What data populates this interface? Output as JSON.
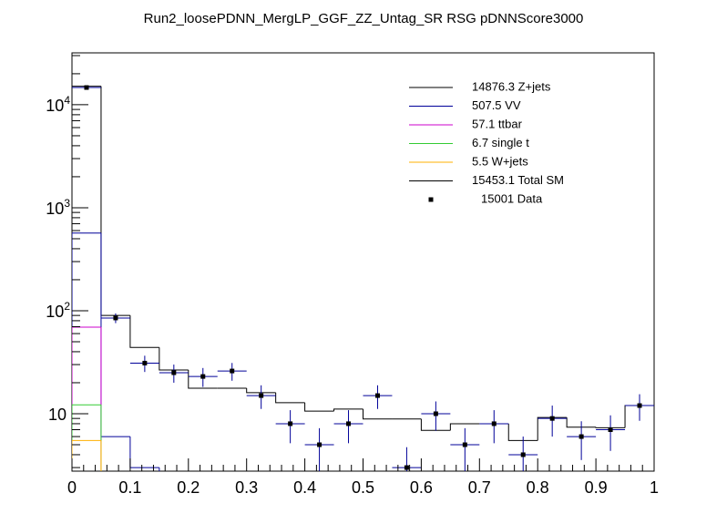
{
  "chart_data": {
    "type": "stacked-histogram",
    "title": "Run2_loosePDNN_MergLP_GGF_ZZ_Untag_SR RSG  pDNNScore3000",
    "bins": [
      0,
      0.05,
      0.1,
      0.15,
      0.2,
      0.25,
      0.3,
      0.35,
      0.4,
      0.45,
      0.5,
      0.55,
      0.6,
      0.65,
      0.7,
      0.75,
      0.8,
      0.85,
      0.9,
      0.95,
      1
    ],
    "log_y": true,
    "xlim": [
      0,
      1
    ],
    "ylim": [
      2.77,
      31900
    ],
    "xticks": [
      0,
      0.1,
      0.2,
      0.3,
      0.4,
      0.5,
      0.6,
      0.7,
      0.8,
      0.9,
      1
    ],
    "yticks": [
      10,
      {
        "value": 100,
        "label": "10^2"
      },
      {
        "value": 1000,
        "label": "10^3"
      },
      {
        "value": 10000,
        "label": "10^4"
      }
    ],
    "series": [
      {
        "name": "5.5 W+jets",
        "color": "#ffb000",
        "values": [
          5.5,
          0,
          0,
          0,
          0,
          0,
          0,
          0,
          0,
          0,
          0,
          0,
          0,
          0,
          0,
          0,
          0,
          0,
          0,
          0
        ]
      },
      {
        "name": "6.7 single t",
        "color": "#33cc33",
        "values": [
          6.7,
          0,
          0,
          0,
          0,
          0,
          0,
          0,
          0,
          0,
          0,
          0,
          0,
          0,
          0,
          0,
          0,
          0,
          0,
          0
        ]
      },
      {
        "name": "57.1 ttbar",
        "color": "#cc00cc",
        "values": [
          57.1,
          0,
          0,
          0,
          0,
          0,
          0,
          0,
          0,
          0,
          0,
          0,
          0,
          0,
          0,
          0,
          0,
          0,
          0,
          0
        ]
      },
      {
        "name": "507.5 VV",
        "color": "#000099",
        "values": [
          498.5,
          6,
          3,
          0,
          0,
          0,
          0,
          0,
          0,
          0,
          0,
          0,
          0,
          0,
          0,
          0,
          0,
          0,
          0,
          0
        ]
      },
      {
        "name": "14876.3 Z+jets",
        "color": "#000000",
        "values": [
          14556.7,
          84,
          41,
          26.6,
          17.7,
          17.7,
          16,
          12.8,
          10.6,
          11.1,
          8.9,
          8.9,
          6.9,
          8,
          8,
          5.5,
          9.2,
          7.4,
          7.3,
          12
        ]
      }
    ],
    "total_label": "15453.1 Total SM",
    "data": {
      "name": "15001 Data",
      "color": "#000000",
      "values": [
        14696,
        85,
        31,
        25,
        23,
        26,
        15,
        8,
        5,
        8,
        15,
        3,
        10,
        5,
        8,
        4,
        9,
        6,
        7,
        12
      ]
    }
  }
}
